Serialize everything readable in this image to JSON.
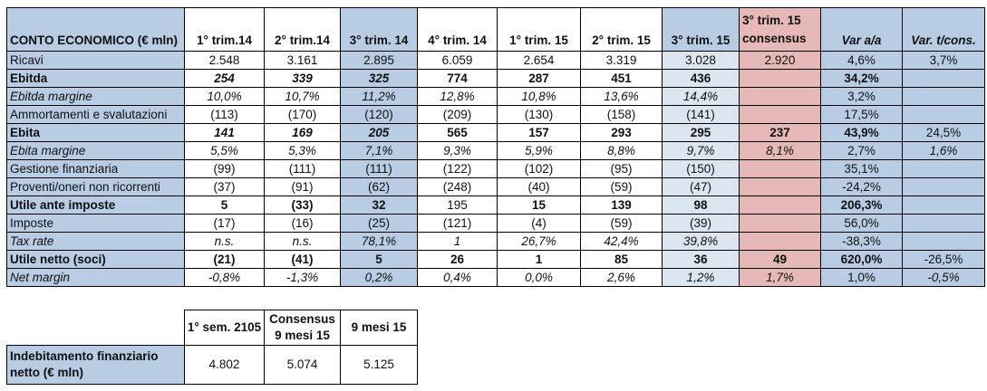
{
  "colors": {
    "header_blue": "#b8cce4",
    "highlight_light_blue": "#dce6f1",
    "consensus_pink": "#e6b8b7",
    "grid_border": "#000000"
  },
  "chart_data": [
    {
      "type": "table",
      "title": "CONTO ECONOMICO (€ mln)",
      "columns": [
        "CONTO ECONOMICO (€ mln)",
        "1° trim.14",
        "2° trim.14",
        "3° trim. 14",
        "4° trim. 14",
        "1° trim. 15",
        "2° trim. 15",
        "3° trim. 15",
        "3° trim. 15 consensus",
        "Var a/a",
        "Var. t/cons."
      ],
      "rows": [
        {
          "label": "Ricavi",
          "label_style": "n",
          "values": [
            "2.548",
            "3.161",
            "2.895",
            "6.059",
            "2.654",
            "3.319",
            "3.028",
            "2.920",
            "4,6%",
            "3,7%"
          ],
          "styles": [
            "n",
            "n",
            "n",
            "n",
            "n",
            "n",
            "n",
            "n",
            "n",
            "n"
          ]
        },
        {
          "label": "Ebitda",
          "label_style": "b",
          "values": [
            "254",
            "339",
            "325",
            "774",
            "287",
            "451",
            "436",
            "",
            "34,2%",
            ""
          ],
          "styles": [
            "bi",
            "bi",
            "bi",
            "b",
            "b",
            "b",
            "b",
            "n",
            "b",
            "n"
          ]
        },
        {
          "label": "Ebitda margine",
          "label_style": "i",
          "values": [
            "10,0%",
            "10,7%",
            "11,2%",
            "12,8%",
            "10,8%",
            "13,6%",
            "14,4%",
            "",
            "3,2%",
            ""
          ],
          "styles": [
            "i",
            "i",
            "i",
            "i",
            "i",
            "i",
            "i",
            "n",
            "n",
            "n"
          ]
        },
        {
          "label": "Ammortamenti e svalutazioni",
          "label_style": "n",
          "values": [
            "(113)",
            "(170)",
            "(120)",
            "(209)",
            "(130)",
            "(158)",
            "(141)",
            "",
            "17,5%",
            ""
          ],
          "styles": [
            "n",
            "n",
            "n",
            "n",
            "n",
            "n",
            "n",
            "n",
            "n",
            "n"
          ]
        },
        {
          "label": "Ebita",
          "label_style": "b",
          "values": [
            "141",
            "169",
            "205",
            "565",
            "157",
            "293",
            "295",
            "237",
            "43,9%",
            "24,5%"
          ],
          "styles": [
            "bi",
            "bi",
            "bi",
            "b",
            "b",
            "b",
            "b",
            "b",
            "b",
            "n"
          ]
        },
        {
          "label": "Ebita margine",
          "label_style": "i",
          "values": [
            "5,5%",
            "5,3%",
            "7,1%",
            "9,3%",
            "5,9%",
            "8,8%",
            "9,7%",
            "8,1%",
            "2,7%",
            "1,6%"
          ],
          "styles": [
            "i",
            "i",
            "i",
            "i",
            "i",
            "i",
            "i",
            "i",
            "n",
            "i"
          ]
        },
        {
          "label": "Gestione finanziaria",
          "label_style": "n",
          "values": [
            "(99)",
            "(111)",
            "(111)",
            "(122)",
            "(102)",
            "(95)",
            "(150)",
            "",
            "35,1%",
            ""
          ],
          "styles": [
            "n",
            "n",
            "n",
            "n",
            "n",
            "n",
            "n",
            "n",
            "n",
            "n"
          ]
        },
        {
          "label": "Proventi/oneri non ricorrenti",
          "label_style": "n",
          "values": [
            "(37)",
            "(91)",
            "(62)",
            "(248)",
            "(40)",
            "(59)",
            "(47)",
            "",
            "-24,2%",
            ""
          ],
          "styles": [
            "n",
            "n",
            "n",
            "n",
            "n",
            "n",
            "n",
            "n",
            "n",
            "n"
          ]
        },
        {
          "label": "Utile ante imposte",
          "label_style": "b",
          "values": [
            "5",
            "(33)",
            "32",
            "195",
            "15",
            "139",
            "98",
            "",
            "206,3%",
            ""
          ],
          "styles": [
            "b",
            "b",
            "b",
            "n",
            "b",
            "b",
            "b",
            "n",
            "b",
            "n"
          ]
        },
        {
          "label": "Imposte",
          "label_style": "n",
          "values": [
            "(17)",
            "(16)",
            "(25)",
            "(121)",
            "(4)",
            "(59)",
            "(39)",
            "",
            "56,0%",
            ""
          ],
          "styles": [
            "n",
            "n",
            "n",
            "n",
            "n",
            "n",
            "n",
            "n",
            "n",
            "n"
          ]
        },
        {
          "label": "Tax rate",
          "label_style": "i",
          "values": [
            "n.s.",
            "n.s.",
            "78,1%",
            "1",
            "26,7%",
            "42,4%",
            "39,8%",
            "",
            "-38,3%",
            ""
          ],
          "styles": [
            "i",
            "i",
            "i",
            "i",
            "i",
            "i",
            "i",
            "n",
            "n",
            "n"
          ]
        },
        {
          "label": "Utile netto (soci)",
          "label_style": "b",
          "values": [
            "(21)",
            "(41)",
            "5",
            "26",
            "1",
            "85",
            "36",
            "49",
            "620,0%",
            "-26,5%"
          ],
          "styles": [
            "b",
            "b",
            "b",
            "b",
            "b",
            "b",
            "b",
            "b",
            "b",
            "n"
          ]
        },
        {
          "label": "Net margin",
          "label_style": "i",
          "values": [
            "-0,8%",
            "-1,3%",
            "0,2%",
            "0,4%",
            "0,0%",
            "2,6%",
            "1,2%",
            "1,7%",
            "1,0%",
            "-0,5%"
          ],
          "styles": [
            "i",
            "i",
            "i",
            "i",
            "i",
            "i",
            "i",
            "i",
            "n",
            "i"
          ]
        }
      ]
    },
    {
      "type": "table",
      "title": "Indebitamento finanziario netto (€ mln)",
      "columns": [
        "1° sem. 2105",
        "Consensus 9 mesi 15",
        "9 mesi 15"
      ],
      "rows": [
        {
          "label": "Indebitamento finanziario netto (€ mln)",
          "label_style": "b",
          "values": [
            "4.802",
            "5.074",
            "5.125"
          ],
          "styles": [
            "n",
            "n",
            "n"
          ]
        }
      ]
    }
  ]
}
